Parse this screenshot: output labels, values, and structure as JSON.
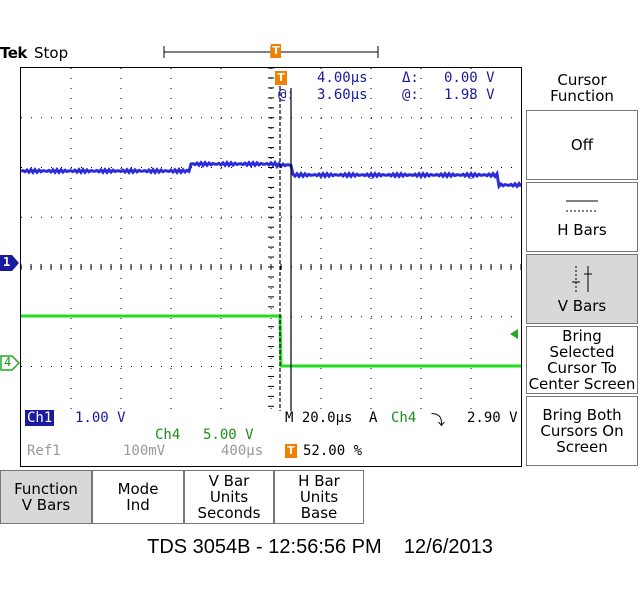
{
  "header": {
    "brand": "Tek",
    "status": "Stop",
    "trigger_marker": "T"
  },
  "cursor_readout": {
    "t_icon": "T",
    "t_value": "4.00µs",
    "delta_symbol": "Δ:",
    "delta_value": "0.00 V",
    "at1_label": "@:",
    "at1_value": "3.60µs",
    "at2_label": "@:",
    "at2_value": "1.98 V"
  },
  "channel_markers": {
    "ch1": "1",
    "ch4": "4"
  },
  "bottom_readout": {
    "ch1_label": "Ch1",
    "ch1_scale": "1.00 V",
    "ch4_label": "Ch4",
    "ch4_scale": "5.00 V",
    "timebase": "M 20.0µs",
    "trigger_mode": "A",
    "trigger_source": "Ch4",
    "trigger_slope": "⤵",
    "trigger_level": "2.90 V",
    "ref_label": "Ref1",
    "ref_scale": "100mV",
    "ref_time": "400µs",
    "trigger_pos_icon": "T",
    "trigger_pos": "52.00 %"
  },
  "side_menu": {
    "title": "Cursor Function",
    "items": [
      {
        "label": "Off",
        "selected": false
      },
      {
        "label": "H Bars",
        "selected": false
      },
      {
        "label": "V Bars",
        "selected": true
      },
      {
        "label": "Bring Selected Cursor To Center Screen",
        "selected": false
      },
      {
        "label": "Bring Both Cursors On Screen",
        "selected": false
      }
    ]
  },
  "bottom_menu": {
    "items": [
      {
        "line1": "Function",
        "line2": "V Bars",
        "line3": "",
        "selected": true
      },
      {
        "line1": "Mode",
        "line2": "Ind",
        "line3": "",
        "selected": false
      },
      {
        "line1": "V Bar",
        "line2": "Units",
        "line3": "Seconds",
        "selected": false
      },
      {
        "line1": "H Bar",
        "line2": "Units",
        "line3": "Base",
        "selected": false
      }
    ]
  },
  "footer": "TDS 3054B - 12:56:56 PM    12/6/2013",
  "colors": {
    "ch1_trace": "#2b2bd9",
    "ch4_trace": "#22dd22",
    "trigger_orange": "#f08000",
    "readout_blue": "#1a1a9e",
    "readout_green": "#1a8f1a"
  }
}
